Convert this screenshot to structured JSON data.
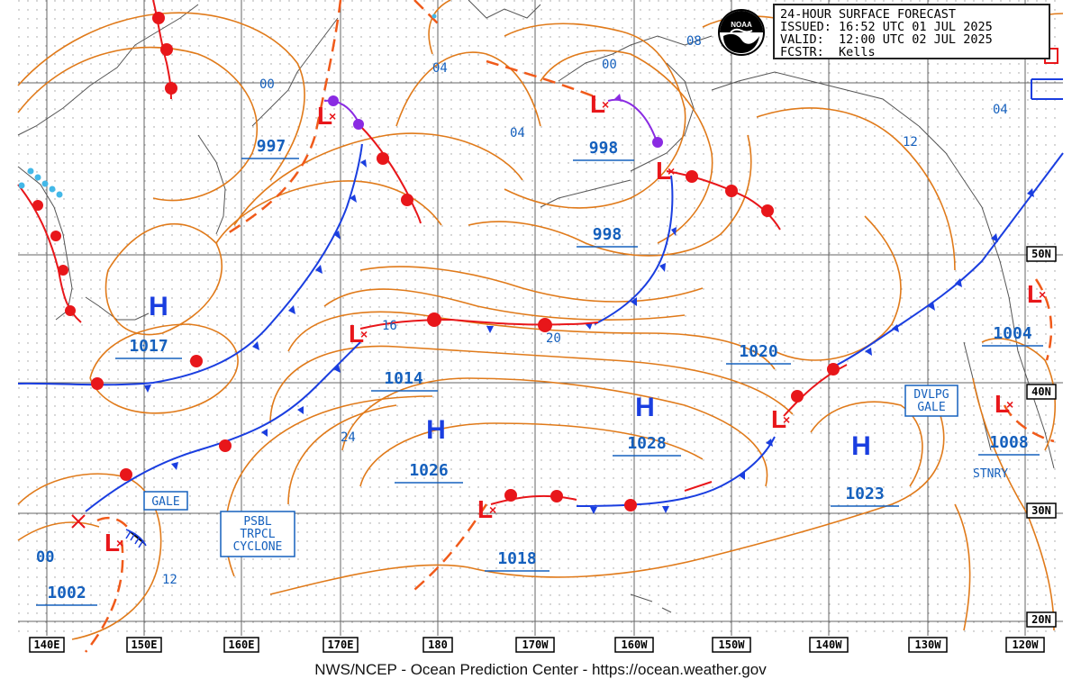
{
  "header": {
    "title": "24-HOUR SURFACE FORECAST",
    "issued": "ISSUED: 16:52 UTC 01 JUL 2025",
    "valid": "VALID:  12:00 UTC 02 JUL 2025",
    "forecaster": "FCSTR:  Kells",
    "logo_text": "NOAA"
  },
  "footer": {
    "credit": "NWS/NCEP - Ocean Prediction Center - https://ocean.weather.gov"
  },
  "axes": {
    "longitudes": [
      "140E",
      "150E",
      "160E",
      "170E",
      "180",
      "170W",
      "160W",
      "150W",
      "140W",
      "130W",
      "120W"
    ],
    "latitudes": [
      "50N",
      "40N",
      "30N",
      "20N"
    ]
  },
  "highs": [
    {
      "symbol": "H",
      "pressure": "1017"
    },
    {
      "symbol": "H",
      "pressure": "1026"
    },
    {
      "symbol": "H",
      "pressure": "1028"
    },
    {
      "symbol": "H",
      "pressure": "1023"
    }
  ],
  "lows": [
    {
      "symbol": "L",
      "pressure": "997"
    },
    {
      "symbol": "L",
      "pressure": "998"
    },
    {
      "symbol": "L",
      "pressure": "998"
    },
    {
      "symbol": "L",
      "pressure": "1014"
    },
    {
      "symbol": "L",
      "pressure": "1018"
    },
    {
      "symbol": "L",
      "pressure": "1020"
    },
    {
      "symbol": "L",
      "pressure": "1004"
    },
    {
      "symbol": "L",
      "pressure": "1008"
    },
    {
      "symbol": "L",
      "pressure": "1002"
    }
  ],
  "isobar_labels": [
    "00",
    "04",
    "04",
    "08",
    "04",
    "12",
    "00",
    "16",
    "20",
    "24",
    "00",
    "12"
  ],
  "warnings": {
    "gale": "GALE",
    "dvlpg_gale_1": "DVLPG",
    "dvlpg_gale_2": "GALE",
    "psbl_1": "PSBL",
    "psbl_2": "TRPCL",
    "psbl_3": "CYCLONE",
    "stnry": "STNRY"
  },
  "colors": {
    "cold_front": "#1a3ee0",
    "warm_front": "#e8161a",
    "occluded_front": "#8a2be2",
    "isobar": "#e07a1a",
    "coast": "#555555",
    "grid": "#666666",
    "label_blue": "#1560bd"
  }
}
